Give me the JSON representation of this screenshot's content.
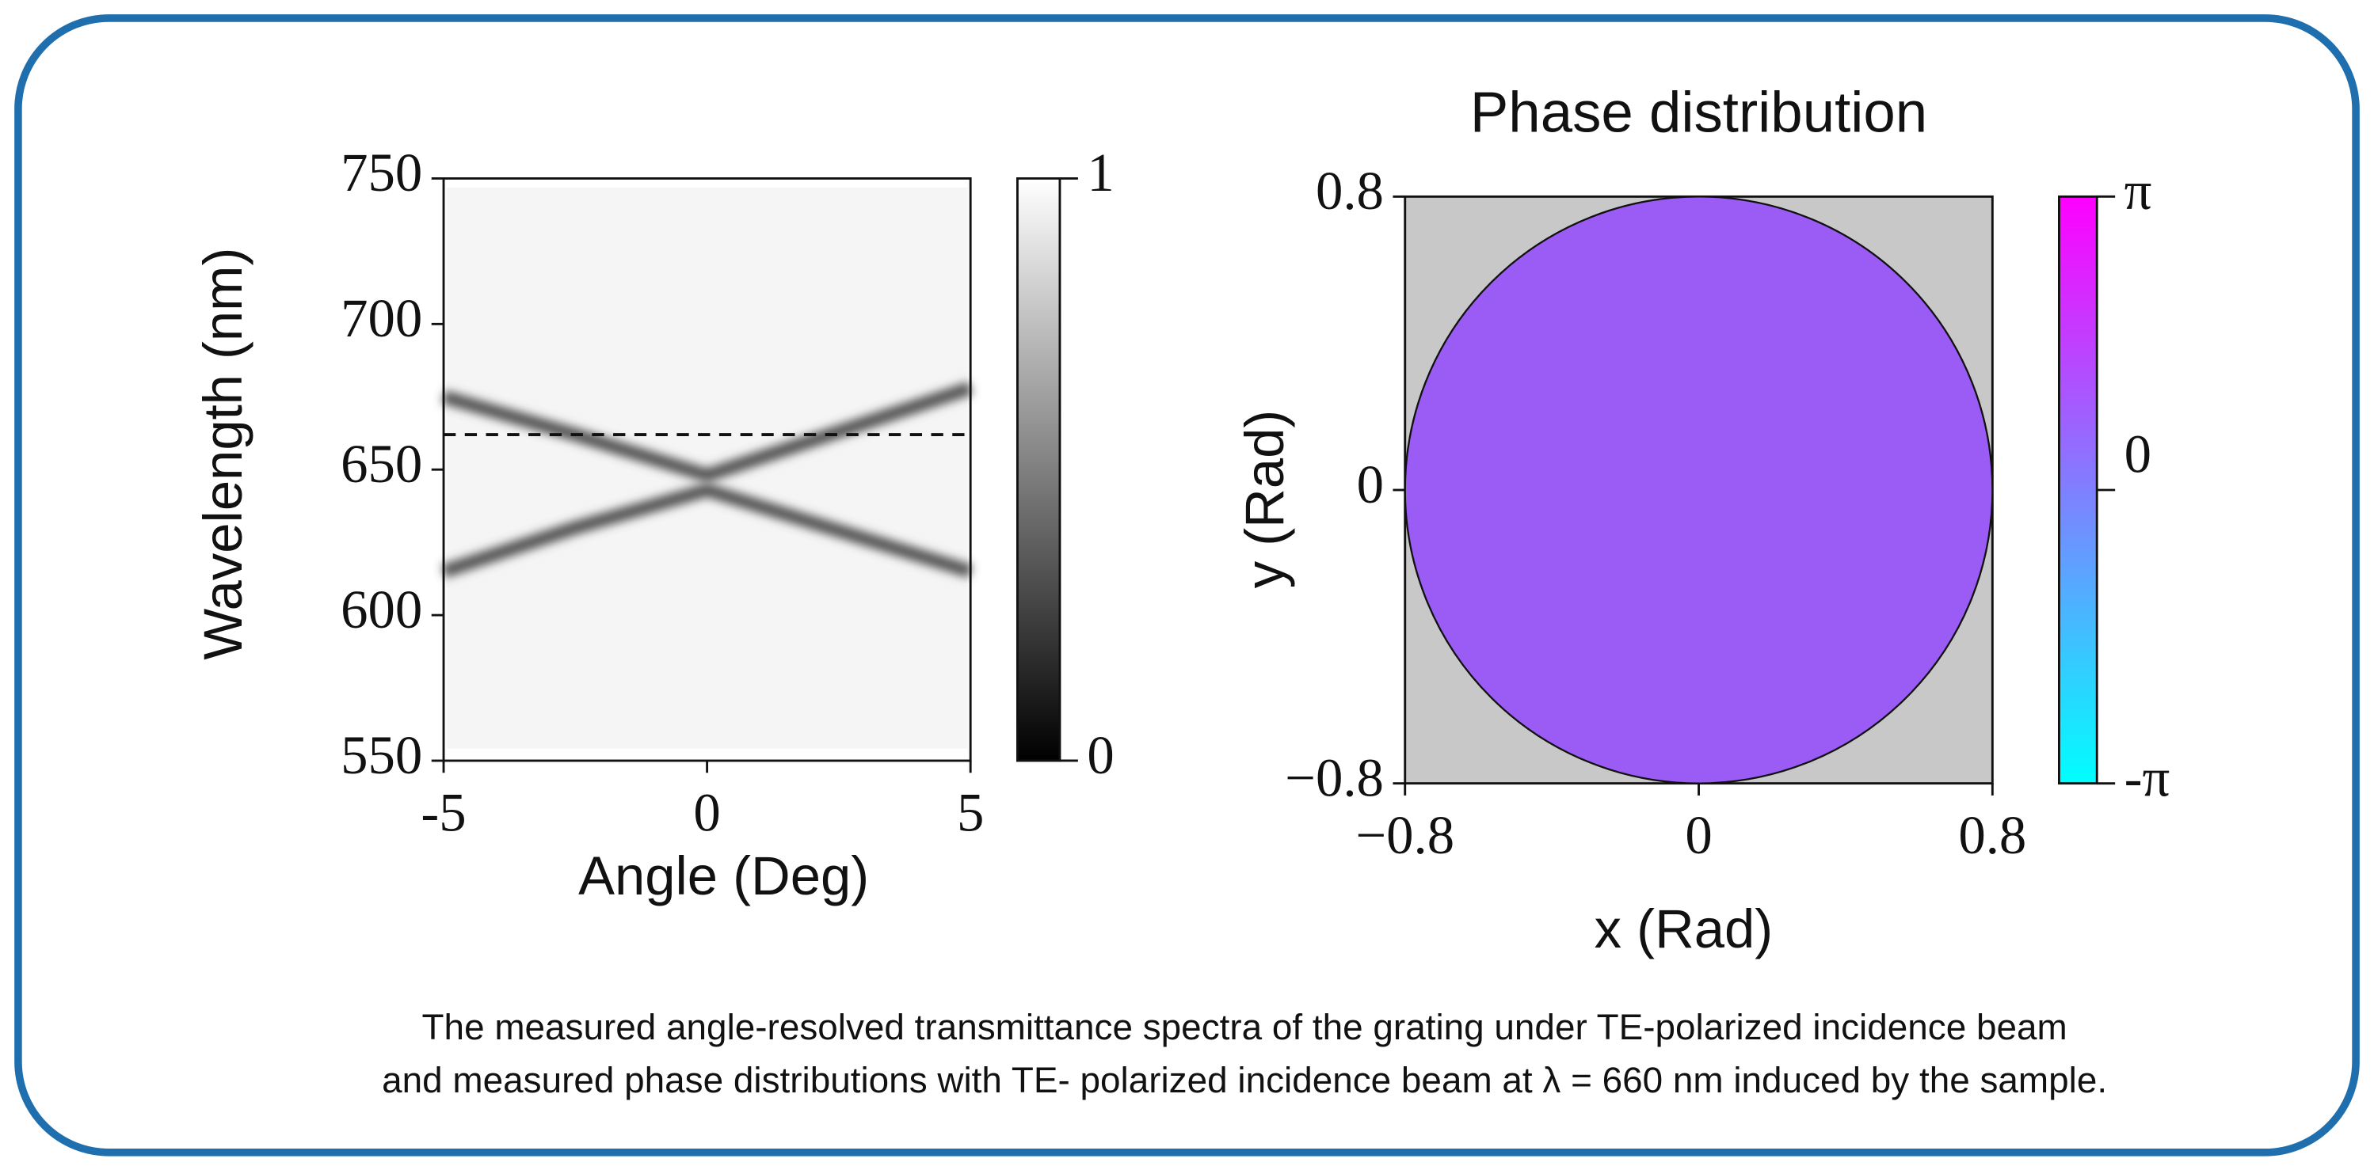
{
  "chart_data": [
    {
      "type": "heatmap",
      "xlabel": "Angle (Deg)",
      "ylabel": "Wavelength (nm)",
      "xlim": [
        -5,
        5
      ],
      "xticks": [
        -5,
        0,
        5
      ],
      "ylim": [
        550,
        750
      ],
      "yticks": [
        550,
        600,
        650,
        700,
        750
      ],
      "x": [
        -5,
        -2.5,
        0,
        2.5,
        5
      ],
      "series": [
        {
          "color": "#555555",
          "values": [
            675,
            662,
            648,
            663,
            678
          ]
        },
        {
          "color": "#555555",
          "values": [
            615,
            630,
            643,
            629,
            615
          ]
        }
      ],
      "reference_line": 662,
      "clim": [
        0,
        1
      ],
      "cticks": [
        0,
        1
      ],
      "colormap": [
        "#000000",
        "#ffffff"
      ]
    },
    {
      "type": "phase-map",
      "title": "Phase distribution",
      "xlabel": "x (Rad)",
      "ylabel": "y (Rad)",
      "xlim": [
        -0.8,
        0.8
      ],
      "xticks": [
        {
          "value": -0.8,
          "label": "−0.8"
        },
        0,
        0.8
      ],
      "ylim": [
        -0.8,
        0.8
      ],
      "yticks": [
        {
          "value": -0.8,
          "label": "−0.8"
        },
        0,
        0.8
      ],
      "disk_radius": 0.8,
      "disk_color": "#9b5cf6",
      "background_color": "#c8c8c8",
      "clim": [
        -3.14159,
        3.14159
      ],
      "cticks": [
        {
          "value": -3.14159,
          "label": "-π"
        },
        {
          "value": 0,
          "label": "0"
        },
        {
          "value": 3.14159,
          "label": "π"
        }
      ],
      "colormap": [
        "#00ffff",
        "#ff00ff"
      ]
    }
  ],
  "caption": [
    "The measured angle-resolved transmittance spectra of the grating under TE-polarized incidence beam",
    "and measured phase distributions with TE- polarized incidence beam at λ = 660 nm induced by the sample."
  ]
}
